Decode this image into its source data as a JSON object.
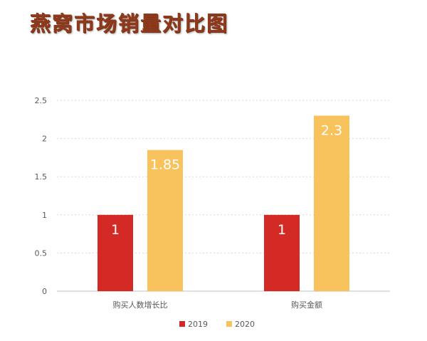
{
  "colors": {
    "title": "#8e3a1c",
    "series_2019": "#d42a26",
    "series_2020": "#f8c25c",
    "grid": "#d9d9d9",
    "axis": "#bfbfbf"
  },
  "chart_data": {
    "type": "bar",
    "title": "燕窝市场销量对比图",
    "categories": [
      "购买人数增长比",
      "购买金额"
    ],
    "series": [
      {
        "name": "2019",
        "values": [
          1,
          1
        ],
        "labels": [
          "1",
          "1"
        ]
      },
      {
        "name": "2020",
        "values": [
          1.85,
          2.3
        ],
        "labels": [
          "1.85",
          "2.3"
        ]
      }
    ],
    "yticks": [
      "0",
      "0.5",
      "1",
      "1.5",
      "2",
      "2.5"
    ],
    "ylim": [
      0,
      2.5
    ],
    "grid": true,
    "legend": "bottom"
  }
}
